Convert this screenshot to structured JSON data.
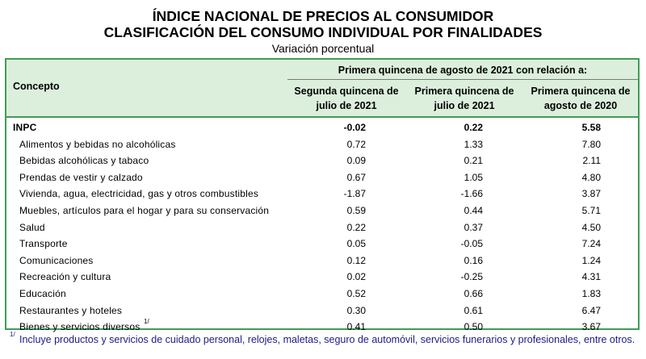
{
  "title_line1": "ÍNDICE NACIONAL DE PRECIOS AL CONSUMIDOR",
  "title_line2": "CLASIFICACIÓN DEL CONSUMO INDIVIDUAL POR FINALIDADES",
  "subtitle": "Variación porcentual",
  "table": {
    "concept_header": "Concepto",
    "group_header": "Primera quincena de agosto de 2021 con relación a:",
    "columns": [
      [
        "Segunda quincena de",
        "julio de 2021"
      ],
      [
        "Primera quincena de",
        "julio de 2021"
      ],
      [
        "Primera quincena de",
        "agosto de 2020"
      ]
    ],
    "rows": [
      {
        "label": "INPC",
        "bold": true,
        "values": [
          "-0.02",
          "0.22",
          "5.58"
        ]
      },
      {
        "label": "Alimentos y bebidas no alcohólicas",
        "values": [
          "0.72",
          "1.33",
          "7.80"
        ]
      },
      {
        "label": "Bebidas alcohólicas y tabaco",
        "values": [
          "0.09",
          "0.21",
          "2.11"
        ]
      },
      {
        "label": "Prendas de vestir y calzado",
        "values": [
          "0.67",
          "1.05",
          "4.80"
        ]
      },
      {
        "label": "Vivienda, agua, electricidad, gas y otros combustibles",
        "values": [
          "-1.87",
          "-1.66",
          "3.87"
        ]
      },
      {
        "label": "Muebles, artículos para el hogar y para su conservación",
        "values": [
          "0.59",
          "0.44",
          "5.71"
        ]
      },
      {
        "label": "Salud",
        "values": [
          "0.22",
          "0.37",
          "4.50"
        ]
      },
      {
        "label": "Transporte",
        "values": [
          "0.05",
          "-0.05",
          "7.24"
        ]
      },
      {
        "label": "Comunicaciones",
        "values": [
          "0.12",
          "0.16",
          "1.24"
        ]
      },
      {
        "label": "Recreación y cultura",
        "values": [
          "0.02",
          "-0.25",
          "4.31"
        ]
      },
      {
        "label": "Educación",
        "values": [
          "0.52",
          "0.66",
          "1.83"
        ]
      },
      {
        "label": "Restaurantes y hoteles",
        "values": [
          "0.30",
          "0.61",
          "6.47"
        ]
      },
      {
        "label": "Bienes y servicios diversos",
        "footnote": "1/",
        "values": [
          "0.41",
          "0.50",
          "3.67"
        ]
      }
    ]
  },
  "footnote": {
    "mark": "1/",
    "text": "Incluye productos y servicios de cuidado personal, relojes, maletas, seguro de automóvil, servicios funerarios y profesionales, entre otros."
  }
}
